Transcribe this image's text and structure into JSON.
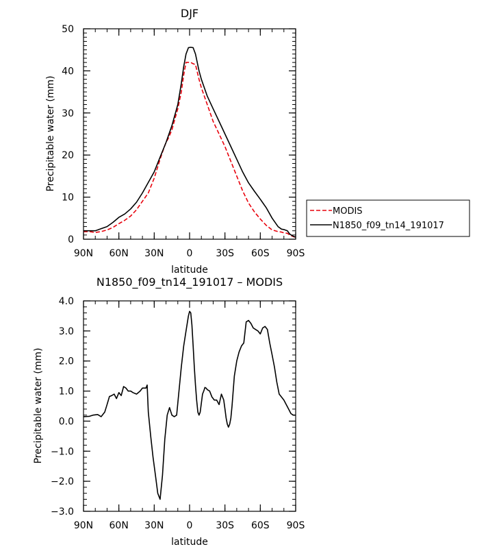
{
  "colors": {
    "modis": "#e8000b",
    "model": "#000000"
  },
  "chart_data": [
    {
      "type": "line",
      "title": "DJF",
      "xlabel": "latitude",
      "ylabel": "Precipitable water (mm)",
      "x_ticks": [
        {
          "value": -90,
          "label": "90N"
        },
        {
          "value": -60,
          "label": "60N"
        },
        {
          "value": -30,
          "label": "30N"
        },
        {
          "value": 0,
          "label": "0"
        },
        {
          "value": 30,
          "label": "30S"
        },
        {
          "value": 60,
          "label": "60S"
        },
        {
          "value": 90,
          "label": "90S"
        }
      ],
      "y_ticks": [
        {
          "value": 0,
          "label": "0"
        },
        {
          "value": 10,
          "label": "10"
        },
        {
          "value": 20,
          "label": "20"
        },
        {
          "value": 30,
          "label": "30"
        },
        {
          "value": 40,
          "label": "40"
        },
        {
          "value": 50,
          "label": "50"
        }
      ],
      "xlim": [
        -90,
        90
      ],
      "ylim": [
        0,
        50
      ],
      "legend_position": "right",
      "series": [
        {
          "name": "MODIS",
          "style": "dashed",
          "color": "#e8000b",
          "x": [
            -90,
            -85,
            -80,
            -75,
            -70,
            -65,
            -60,
            -55,
            -50,
            -45,
            -40,
            -35,
            -30,
            -25,
            -22,
            -20,
            -18,
            -15,
            -12,
            -10,
            -7,
            -5,
            -3,
            -1,
            1,
            3,
            5,
            8,
            10,
            15,
            20,
            25,
            30,
            35,
            40,
            45,
            50,
            55,
            60,
            65,
            70,
            75,
            78,
            80,
            83,
            85,
            88,
            90
          ],
          "y": [
            1.8,
            1.8,
            1.6,
            1.8,
            2.2,
            2.8,
            3.7,
            4.5,
            5.5,
            7,
            9,
            11,
            14.5,
            19,
            21.5,
            23,
            24,
            26,
            29,
            31,
            35,
            39,
            42,
            42,
            42,
            41.7,
            41.5,
            38,
            36,
            32,
            28,
            25,
            22,
            18.5,
            15,
            11.5,
            8.6,
            6.5,
            4.8,
            3.3,
            2.2,
            1.8,
            1.7,
            1.5,
            1.4,
            1.0,
            0.6,
            0.4
          ]
        },
        {
          "name": "N1850_f09_tn14_191017",
          "style": "solid",
          "color": "#000000",
          "x": [
            -90,
            -85,
            -80,
            -75,
            -70,
            -65,
            -60,
            -55,
            -50,
            -45,
            -40,
            -35,
            -30,
            -25,
            -20,
            -15,
            -10,
            -7,
            -5,
            -3,
            -1,
            1,
            3,
            5,
            8,
            10,
            15,
            20,
            25,
            30,
            35,
            40,
            45,
            50,
            55,
            60,
            65,
            70,
            75,
            78,
            80,
            83,
            85,
            88,
            90
          ],
          "y": [
            2.0,
            2.0,
            2.0,
            2.5,
            3.0,
            4.0,
            5.2,
            6.0,
            7.2,
            8.8,
            11,
            13.5,
            16,
            19.5,
            23,
            27,
            32,
            37,
            41,
            44,
            45.5,
            45.6,
            45.5,
            44,
            40,
            38,
            34,
            31,
            28,
            25,
            22,
            19,
            16,
            13.4,
            11.4,
            9.5,
            7.5,
            5,
            3,
            2.4,
            2.3,
            2.0,
            1.2,
            0.7,
            0.5
          ]
        }
      ]
    },
    {
      "type": "line",
      "title": "N1850_f09_tn14_191017 – MODIS",
      "xlabel": "latitude",
      "ylabel": "Precipitable water (mm)",
      "x_ticks": [
        {
          "value": -90,
          "label": "90N"
        },
        {
          "value": -60,
          "label": "60N"
        },
        {
          "value": -30,
          "label": "30N"
        },
        {
          "value": 0,
          "label": "0"
        },
        {
          "value": 30,
          "label": "30S"
        },
        {
          "value": 60,
          "label": "60S"
        },
        {
          "value": 90,
          "label": "90S"
        }
      ],
      "y_ticks": [
        {
          "value": -3,
          "label": "−3.0"
        },
        {
          "value": -2,
          "label": "−2.0"
        },
        {
          "value": -1,
          "label": "−1.0"
        },
        {
          "value": 0,
          "label": "0.0"
        },
        {
          "value": 1,
          "label": "1.0"
        },
        {
          "value": 2,
          "label": "2.0"
        },
        {
          "value": 3,
          "label": "3.0"
        },
        {
          "value": 4,
          "label": "4.0"
        }
      ],
      "xlim": [
        -90,
        90
      ],
      "ylim": [
        -3,
        4
      ],
      "series": [
        {
          "style": "solid",
          "color": "#000000",
          "x": [
            -90,
            -85,
            -82,
            -78,
            -75,
            -72,
            -70,
            -68,
            -66,
            -64,
            -62,
            -60,
            -58,
            -56,
            -54,
            -52,
            -50,
            -48,
            -45,
            -42,
            -40,
            -37,
            -36,
            -35,
            -33,
            -31,
            -29,
            -27,
            -25,
            -23,
            -21,
            -19,
            -17,
            -15,
            -13,
            -11,
            -9,
            -7,
            -5,
            -3,
            -1,
            0,
            1,
            2,
            3,
            4,
            5,
            6,
            7,
            8,
            9,
            10,
            11,
            12,
            13,
            14,
            15,
            17,
            19,
            21,
            23,
            25,
            27,
            29,
            30,
            31,
            32,
            33,
            34,
            35,
            36,
            37,
            38,
            40,
            42,
            44,
            46,
            48,
            50,
            52,
            54,
            56,
            58,
            60,
            62,
            64,
            66,
            68,
            70,
            72,
            74,
            76,
            78,
            80,
            82,
            84,
            86,
            88,
            90
          ],
          "y": [
            0.15,
            0.16,
            0.2,
            0.22,
            0.15,
            0.3,
            0.55,
            0.82,
            0.85,
            0.9,
            0.75,
            0.95,
            0.85,
            1.15,
            1.1,
            1.0,
            1.0,
            0.95,
            0.9,
            1.0,
            1.1,
            1.1,
            1.2,
            0.3,
            -0.5,
            -1.2,
            -1.8,
            -2.4,
            -2.6,
            -1.8,
            -0.6,
            0.2,
            0.45,
            0.2,
            0.15,
            0.2,
            1.0,
            1.8,
            2.5,
            3.0,
            3.5,
            3.65,
            3.6,
            3.2,
            2.5,
            1.8,
            1.2,
            0.7,
            0.3,
            0.2,
            0.3,
            0.6,
            0.9,
            1.0,
            1.12,
            1.1,
            1.05,
            1.0,
            0.8,
            0.7,
            0.7,
            0.55,
            0.9,
            0.7,
            0.4,
            0.1,
            -0.1,
            -0.2,
            -0.1,
            0.1,
            0.5,
            1.0,
            1.5,
            2.0,
            2.3,
            2.5,
            2.6,
            3.3,
            3.35,
            3.25,
            3.1,
            3.05,
            3.0,
            2.9,
            3.1,
            3.15,
            3.05,
            2.6,
            2.2,
            1.8,
            1.3,
            0.9,
            0.8,
            0.7,
            0.55,
            0.4,
            0.25,
            0.2,
            0.2
          ]
        }
      ]
    }
  ]
}
